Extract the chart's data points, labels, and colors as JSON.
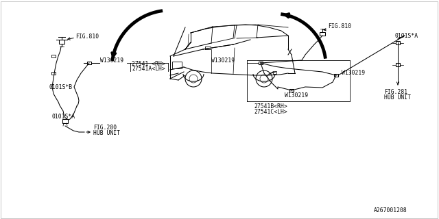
{
  "background_color": "#ffffff",
  "line_color": "#000000",
  "text_color": "#000000",
  "diagram_id": "A267001208",
  "figsize": [
    6.4,
    3.2
  ],
  "dpi": 100,
  "labels": {
    "fig810_left": "FIG.810",
    "fig810_right": "FIG.810",
    "fig280_line1": "FIG.280",
    "fig280_line2": "HUB UNIT",
    "fig281_line1": "FIG.281",
    "fig281_line2": "HUB UNIT",
    "w130219": "W130219",
    "part_left_line1": "27541 <RH>",
    "part_left_line2": "27541A<LH>",
    "part_right_line1": "27541B<RH>",
    "part_right_line2": "27541C<LH>",
    "o101sb": "0101S*B",
    "o101sa_left": "0101S*A",
    "o101sa_right": "0101S*A"
  }
}
